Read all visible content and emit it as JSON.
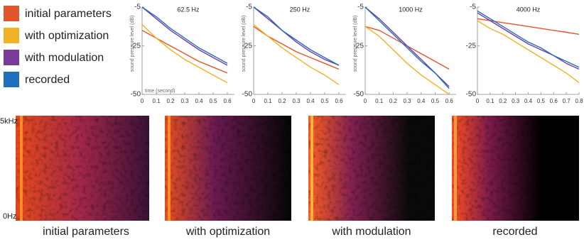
{
  "chart_data": [
    {
      "type": "line",
      "title": "62.5 Hz",
      "ylabel": "sound pressure level (dB)",
      "xlabel": "time (second)",
      "x": [
        0,
        0.1,
        0.2,
        0.3,
        0.4,
        0.5,
        0.6
      ],
      "xlim": [
        0,
        0.65
      ],
      "ylim": [
        -50,
        -5
      ],
      "xticks": [
        0,
        0.1,
        0.2,
        0.3,
        0.4,
        0.5,
        0.6
      ],
      "yticks": [
        -5,
        -25,
        -50
      ],
      "series": [
        {
          "name": "initial parameters",
          "color": "#e0562a",
          "values": [
            -17,
            -21,
            -25,
            -29,
            -33,
            -36,
            -39
          ]
        },
        {
          "name": "with optimization",
          "color": "#f0b323",
          "values": [
            -14,
            -21,
            -27,
            -32,
            -36,
            -40,
            -44
          ]
        },
        {
          "name": "with modulation",
          "color": "#7a3a9a",
          "values": [
            -5,
            -11,
            -17,
            -22,
            -27,
            -31,
            -35
          ]
        },
        {
          "name": "recorded",
          "color": "#1f6fc0",
          "values": [
            -5,
            -10,
            -16,
            -21,
            -26,
            -30,
            -34
          ]
        }
      ]
    },
    {
      "type": "line",
      "title": "250 Hz",
      "ylabel": "sound pressure level (dB)",
      "x": [
        0,
        0.1,
        0.2,
        0.3,
        0.4,
        0.5,
        0.6
      ],
      "xlim": [
        0,
        0.65
      ],
      "ylim": [
        -50,
        -5
      ],
      "xticks": [
        0,
        0.1,
        0.2,
        0.3,
        0.4,
        0.5,
        0.6
      ],
      "yticks": [
        -5,
        -25,
        -50
      ],
      "series": [
        {
          "name": "initial parameters",
          "color": "#e0562a",
          "values": [
            -15,
            -20,
            -24,
            -28,
            -31,
            -34,
            -37
          ]
        },
        {
          "name": "with optimization",
          "color": "#f0b323",
          "values": [
            -14,
            -20,
            -26,
            -31,
            -36,
            -40,
            -45
          ]
        },
        {
          "name": "with modulation",
          "color": "#7a3a9a",
          "values": [
            -5,
            -11,
            -17,
            -23,
            -28,
            -32,
            -35
          ]
        },
        {
          "name": "recorded",
          "color": "#1f6fc0",
          "values": [
            -5,
            -10,
            -17,
            -22,
            -27,
            -31,
            -35
          ]
        }
      ]
    },
    {
      "type": "line",
      "title": "1000 Hz",
      "ylabel": "sound pressure level (dB)",
      "x": [
        0,
        0.1,
        0.2,
        0.3,
        0.4,
        0.5,
        0.6
      ],
      "xlim": [
        0,
        0.65
      ],
      "ylim": [
        -50,
        -5
      ],
      "xticks": [
        0,
        0.1,
        0.2,
        0.3,
        0.4,
        0.5,
        0.6
      ],
      "yticks": [
        -5,
        -25,
        -50
      ],
      "series": [
        {
          "name": "initial parameters",
          "color": "#e0562a",
          "values": [
            -15,
            -17,
            -21,
            -25,
            -29,
            -33,
            -37
          ]
        },
        {
          "name": "with optimization",
          "color": "#f0b323",
          "values": [
            -15,
            -20,
            -27,
            -34,
            -40,
            -45,
            -50
          ]
        },
        {
          "name": "with modulation",
          "color": "#7a3a9a",
          "values": [
            -5,
            -11,
            -18,
            -25,
            -32,
            -39,
            -46
          ]
        },
        {
          "name": "recorded",
          "color": "#1f6fc0",
          "values": [
            -5,
            -12,
            -19,
            -26,
            -33,
            -39,
            -47
          ]
        }
      ]
    },
    {
      "type": "line",
      "title": "4000 Hz",
      "x": [
        0,
        0.1,
        0.2,
        0.3,
        0.4,
        0.5,
        0.6,
        0.7,
        0.8
      ],
      "xlim": [
        0,
        0.8
      ],
      "ylim": [
        -50,
        -5
      ],
      "xticks": [
        0,
        0.1,
        0.2,
        0.3,
        0.4,
        0.5,
        0.6,
        0.7,
        0.8
      ],
      "yticks": [
        -5,
        -25,
        -50
      ],
      "series": [
        {
          "name": "initial parameters",
          "color": "#e0562a",
          "values": [
            -11,
            -12,
            -13,
            -14,
            -15,
            -16,
            -17,
            -18,
            -19
          ]
        },
        {
          "name": "with optimization",
          "color": "#f0b323",
          "values": [
            -12,
            -16,
            -19,
            -23,
            -27,
            -31,
            -35,
            -39,
            -44
          ]
        },
        {
          "name": "with modulation",
          "color": "#7a3a9a",
          "values": [
            -8,
            -12,
            -16,
            -20,
            -24,
            -27,
            -30,
            -34,
            -37
          ]
        },
        {
          "name": "recorded",
          "color": "#1f6fc0",
          "values": [
            -7,
            -11,
            -15,
            -19,
            -23,
            -26,
            -30,
            -33,
            -36
          ]
        }
      ]
    }
  ],
  "spectrograms": {
    "y_labels": [
      "5kHz",
      "0Hz"
    ]
  }
}
